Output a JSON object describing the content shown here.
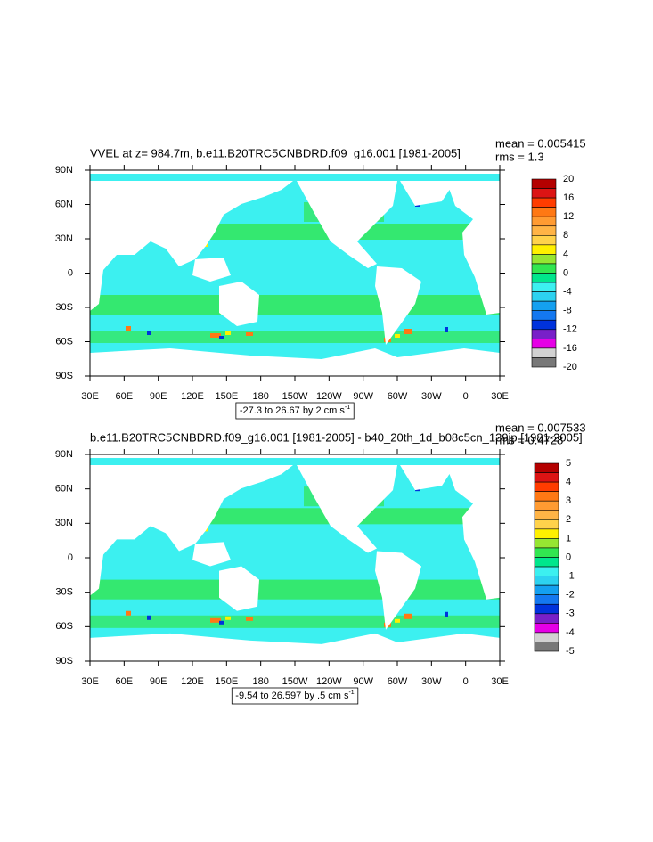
{
  "plots": [
    {
      "title": "VVEL at z= 984.7m, b.e11.B20TRC5CNBDRD.f09_g16.001 [1981-2005]",
      "mean": "mean = 0.005415",
      "rms": "rms = 1.3",
      "lonlim": [
        30,
        390
      ],
      "latlim": [
        -90,
        90
      ],
      "lon_ticks": [
        {
          "value": 30,
          "label": "30E"
        },
        {
          "value": 60,
          "label": "60E"
        },
        {
          "value": 90,
          "label": "90E"
        },
        {
          "value": 120,
          "label": "120E"
        },
        {
          "value": 150,
          "label": "150E"
        },
        {
          "value": 180,
          "label": "180"
        },
        {
          "value": 210,
          "label": "150W"
        },
        {
          "value": 240,
          "label": "120W"
        },
        {
          "value": 270,
          "label": "90W"
        },
        {
          "value": 300,
          "label": "60W"
        },
        {
          "value": 330,
          "label": "30W"
        },
        {
          "value": 360,
          "label": "0"
        },
        {
          "value": 390,
          "label": "30E"
        }
      ],
      "lat_ticks": [
        {
          "value": -90,
          "label": "90S"
        },
        {
          "value": -60,
          "label": "60S"
        },
        {
          "value": -30,
          "label": "30S"
        },
        0,
        {
          "value": 30,
          "label": "30N"
        },
        {
          "value": 60,
          "label": "60N"
        },
        {
          "value": 90,
          "label": "90N"
        }
      ],
      "colorbar": {
        "lim": [
          -20,
          20
        ],
        "labels": [
          20,
          16,
          12,
          8,
          4,
          0,
          -4,
          -8,
          -12,
          -16,
          -20
        ],
        "colors": [
          "#b40000",
          "#dc1414",
          "#ff3c00",
          "#ff7814",
          "#ff9b32",
          "#ffb446",
          "#ffd24b",
          "#fff000",
          "#96e632",
          "#32e650",
          "#00e68c",
          "#3cf0f0",
          "#2dd2f0",
          "#14a0f0",
          "#1478f0",
          "#0032dc",
          "#7820c8",
          "#e600e6",
          "#d2d2d2",
          "#787878"
        ]
      },
      "info": {
        "text": "-27.3 to 26.67 by 2 cm s",
        "exponent": "-1"
      }
    },
    {
      "title": "b.e11.B20TRC5CNBDRD.f09_g16.001 [1981-2005] - b40_20th_1d_b08c5cn_139jp [1981-2005]",
      "mean": "mean = 0.007533",
      "rms": "rms = 0.4728",
      "lonlim": [
        30,
        390
      ],
      "latlim": [
        -90,
        90
      ],
      "lon_ticks": [
        {
          "value": 30,
          "label": "30E"
        },
        {
          "value": 60,
          "label": "60E"
        },
        {
          "value": 90,
          "label": "90E"
        },
        {
          "value": 120,
          "label": "120E"
        },
        {
          "value": 150,
          "label": "150E"
        },
        {
          "value": 180,
          "label": "180"
        },
        {
          "value": 210,
          "label": "150W"
        },
        {
          "value": 240,
          "label": "120W"
        },
        {
          "value": 270,
          "label": "90W"
        },
        {
          "value": 300,
          "label": "60W"
        },
        {
          "value": 330,
          "label": "30W"
        },
        {
          "value": 360,
          "label": "0"
        },
        {
          "value": 390,
          "label": "30E"
        }
      ],
      "lat_ticks": [
        {
          "value": -90,
          "label": "90S"
        },
        {
          "value": -60,
          "label": "60S"
        },
        {
          "value": -30,
          "label": "30S"
        },
        0,
        {
          "value": 30,
          "label": "30N"
        },
        {
          "value": 60,
          "label": "60N"
        },
        {
          "value": 90,
          "label": "90N"
        }
      ],
      "colorbar": {
        "lim": [
          -5,
          5
        ],
        "labels": [
          5,
          4,
          3,
          2,
          1,
          0,
          -1,
          -2,
          -3,
          -4,
          -5
        ],
        "colors": [
          "#b40000",
          "#dc1414",
          "#ff3c00",
          "#ff7814",
          "#ff9b32",
          "#ffb446",
          "#ffd24b",
          "#fff000",
          "#96e632",
          "#32e650",
          "#00e68c",
          "#3cf0f0",
          "#2dd2f0",
          "#14a0f0",
          "#1478f0",
          "#0032dc",
          "#7820c8",
          "#e600e6",
          "#d2d2d2",
          "#787878"
        ]
      },
      "info": {
        "text": "-9.54 to 26.597 by .5 cm s",
        "exponent": "-1"
      }
    }
  ]
}
